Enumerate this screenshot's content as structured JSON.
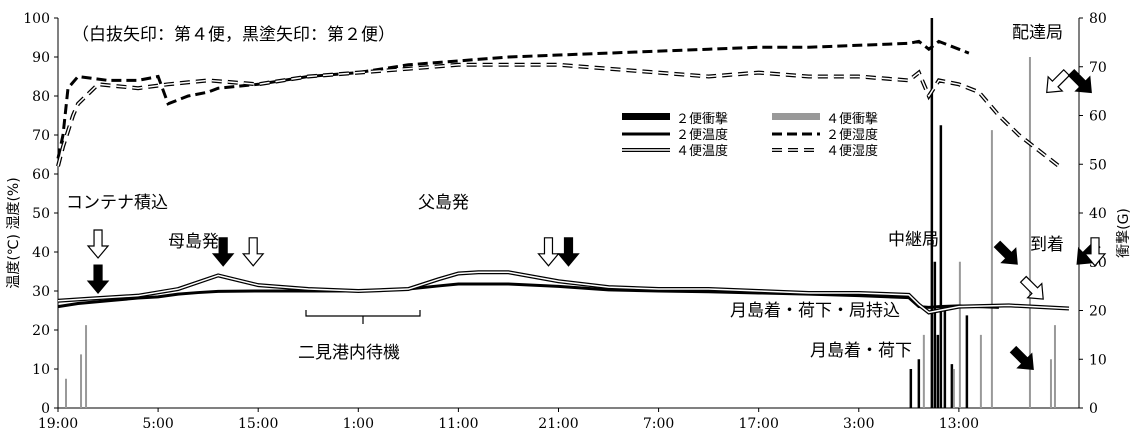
{
  "chart_data": {
    "type": "line",
    "title": "",
    "subtitle": "",
    "header_note": "（白抜矢印：第４便，黒塗矢印：第２便）",
    "ylabel_left": "温度(℃) 湿度(%)",
    "ylabel_right": "衝撃(G)",
    "ylim_left": [
      0,
      100
    ],
    "ylim_right": [
      0,
      80
    ],
    "y_ticks_left": [
      "0",
      "10",
      "20",
      "30",
      "40",
      "50",
      "60",
      "70",
      "80",
      "90",
      "100"
    ],
    "y_ticks_right": [
      "0",
      "10",
      "20",
      "30",
      "40",
      "50",
      "60",
      "70",
      "80"
    ],
    "x_tick_labels": [
      "19:00",
      "5:00",
      "15:00",
      "1:00",
      "11:00",
      "21:00",
      "7:00",
      "17:00",
      "3:00",
      "13:00"
    ],
    "x_range_hours": [
      0,
      102
    ],
    "x_tick_hours": [
      0,
      10,
      20,
      30,
      40,
      50,
      60,
      70,
      80,
      90
    ],
    "grid": false,
    "legend_position": "center-right",
    "legend": [
      {
        "label": "２便衝撃",
        "style": "thick-black-bar"
      },
      {
        "label": "４便衝撃",
        "style": "thick-gray-bar"
      },
      {
        "label": "２便温度",
        "style": "solid-black"
      },
      {
        "label": "２便湿度",
        "style": "dashed-black"
      },
      {
        "label": "４便温度",
        "style": "hollow-double"
      },
      {
        "label": "４便湿度",
        "style": "hollow-dashed"
      }
    ],
    "series": [
      {
        "name": "２便温度",
        "axis": "left",
        "x": [
          0,
          2,
          5,
          8,
          10,
          12,
          14,
          16,
          20,
          30,
          35,
          38,
          40,
          45,
          50,
          55,
          60,
          65,
          70,
          75,
          80,
          85,
          86,
          87,
          88,
          90,
          94
        ],
        "y": [
          26,
          26.8,
          27.5,
          28.2,
          28.5,
          29.2,
          29.6,
          29.9,
          30,
          30,
          30.5,
          31.3,
          31.8,
          31.8,
          31.2,
          30.3,
          30,
          29.8,
          29.5,
          29.2,
          28.8,
          28.3,
          26,
          25.8,
          26,
          26.2,
          25.8
        ]
      },
      {
        "name": "４便温度",
        "axis": "left",
        "x": [
          0,
          3,
          8,
          12,
          16,
          20,
          25,
          30,
          35,
          38,
          40,
          42,
          45,
          50,
          55,
          60,
          65,
          70,
          75,
          80,
          85,
          86,
          87,
          88,
          90,
          95,
          101
        ],
        "y": [
          27.5,
          28,
          28.8,
          30.5,
          34,
          31.5,
          30.5,
          30,
          30.5,
          33,
          34.5,
          34.8,
          34.8,
          32.5,
          31,
          30.5,
          30.5,
          30,
          29.5,
          29.5,
          29,
          26.5,
          24.5,
          25,
          26,
          26.3,
          25.5
        ]
      },
      {
        "name": "２便湿度",
        "axis": "left",
        "x": [
          0,
          0.5,
          1,
          2,
          5,
          8,
          10,
          11,
          13,
          15,
          16,
          20,
          25,
          30,
          35,
          40,
          45,
          50,
          55,
          60,
          65,
          70,
          75,
          80,
          85,
          86,
          87,
          88,
          90,
          91
        ],
        "y": [
          64,
          70,
          82,
          85,
          84,
          84,
          85,
          78,
          80,
          81,
          82,
          83,
          85,
          86,
          88,
          89,
          90,
          90.5,
          91,
          91.5,
          92,
          92.5,
          92.5,
          93,
          93.5,
          94,
          92,
          94,
          92,
          91
        ]
      },
      {
        "name": "４便湿度",
        "axis": "left",
        "x": [
          0,
          0.5,
          1,
          1.5,
          2,
          4,
          8,
          11,
          15,
          20,
          25,
          30,
          35,
          40,
          45,
          50,
          55,
          60,
          65,
          70,
          75,
          80,
          85,
          86,
          87,
          88,
          90,
          92,
          94,
          96,
          98,
          100
        ],
        "y": [
          62,
          67,
          71,
          75,
          78,
          83,
          82,
          83,
          84,
          83,
          85,
          86,
          87,
          88,
          88,
          88,
          87,
          86,
          85,
          86,
          85,
          85,
          84,
          86,
          80,
          84,
          83,
          81,
          75,
          70,
          66,
          62
        ]
      }
    ],
    "impacts": [
      {
        "name": "２便衝撃",
        "axis": "right",
        "x": [
          85.2,
          86.0,
          87.3,
          87.6,
          87.9,
          88.2,
          88.6,
          89.3,
          90.8
        ],
        "values": [
          8,
          10,
          80,
          30,
          15,
          58,
          20,
          9,
          19
        ]
      },
      {
        "name": "４便衝撃",
        "axis": "right",
        "x": [
          0.8,
          2.3,
          2.8,
          86.5,
          89.5,
          90.1,
          92.2,
          93.3,
          97.1,
          99.2,
          99.6
        ],
        "values": [
          6,
          11,
          17,
          15,
          8,
          30,
          15,
          57,
          72,
          10,
          17
        ]
      }
    ],
    "annotations": [
      {
        "text": "コンテナ積込"
      },
      {
        "text": "母島発"
      },
      {
        "text": "父島発"
      },
      {
        "text": "二見港内待機"
      },
      {
        "text": "中継局"
      },
      {
        "text": "配達局"
      },
      {
        "text": "到着"
      },
      {
        "text": "月島着・荷下・局持込"
      },
      {
        "text": "月島着・荷下"
      }
    ],
    "arrows": [
      {
        "flight": "4",
        "x": 4.0,
        "y": 40,
        "dir": "down"
      },
      {
        "flight": "2",
        "x": 4.0,
        "y": 31,
        "dir": "down"
      },
      {
        "flight": "2",
        "x": 16.5,
        "y": 38,
        "dir": "down"
      },
      {
        "flight": "4",
        "x": 19.5,
        "y": 38,
        "dir": "down"
      },
      {
        "flight": "4",
        "x": 49.0,
        "y": 38,
        "dir": "down"
      },
      {
        "flight": "2",
        "x": 51.0,
        "y": 38,
        "dir": "down"
      },
      {
        "flight": "2",
        "x": 95.4,
        "y": 38,
        "dir": "down-right"
      },
      {
        "flight": "4",
        "x": 98.0,
        "y": 29,
        "dir": "down-right"
      },
      {
        "flight": "2",
        "x": 102.6,
        "y": 38,
        "dir": "down-left"
      },
      {
        "flight": "4",
        "x": 99.2,
        "y": 82,
        "dir": "down-left"
      },
      {
        "flight": "2",
        "x": 104.0,
        "y": 82,
        "dir": "down-right"
      },
      {
        "flight": "4",
        "x": 106.0,
        "y": 38,
        "dir": "down"
      },
      {
        "flight": "2",
        "x": 97.0,
        "y": 11,
        "dir": "down-right"
      }
    ]
  }
}
